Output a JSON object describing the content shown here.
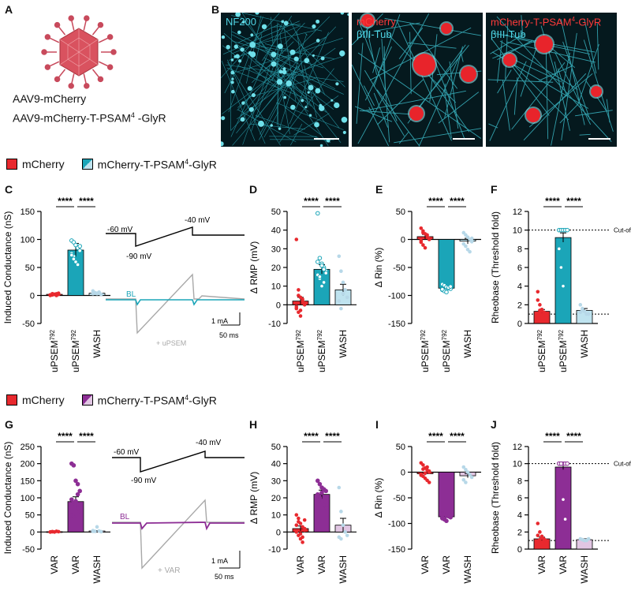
{
  "panels": {
    "A": "A",
    "B": "B",
    "C": "C",
    "D": "D",
    "E": "E",
    "F": "F",
    "G": "G",
    "H": "H",
    "I": "I",
    "J": "J"
  },
  "panelA": {
    "line1": "AAV9-mCherry",
    "line2_prefix": "AAV9-mCherry-T-PSAM",
    "line2_sup": "4",
    "line2_suffix": " -GlyR"
  },
  "panelB": {
    "img1_label": "NF200",
    "img2_label1": "mCherry",
    "img2_label2": "βIII-Tub",
    "img3_label1_prefix": "mCherry-T-PSAM",
    "img3_label1_sup": "4",
    "img3_label1_suffix": "-GlyR",
    "img3_label2": "βIII-Tub"
  },
  "legend1": {
    "a": "mCherry",
    "b_prefix": "mCherry-T-PSAM",
    "b_sup": "4",
    "b_suffix": "-GlyR"
  },
  "legend2": {
    "a": "mCherry",
    "b_prefix": "mCherry-T-PSAM",
    "b_sup": "4",
    "b_suffix": "-GlyR"
  },
  "colors": {
    "red": "#e8292e",
    "teal": "#1ba5b8",
    "lightblue": "#bfe3ef",
    "purple": "#8d2e95",
    "lightpurple": "#e1c6e3",
    "grey": "#a8a8a8"
  },
  "sig": "****",
  "cutoff": "Cut-off",
  "traces": {
    "top": {
      "v1": "-60 mV",
      "v2": "-90 mV",
      "v3": "-40 mV",
      "bl": "BL",
      "drug": "+ uPSEM",
      "scale_y": "1 mA",
      "scale_x": "50 ms"
    },
    "bottom": {
      "v1": "-60 mV",
      "v2": "-90 mV",
      "v3": "-40 mV",
      "bl": "BL",
      "drug": "+ VAR",
      "scale_y": "1 mA",
      "scale_x": "50 ms"
    }
  },
  "chart_data": [
    {
      "id": "C",
      "type": "bar",
      "ylabel": "Induced Conductance (nS)",
      "ylim": [
        -50,
        150
      ],
      "yticks": [
        -50,
        0,
        50,
        100,
        150
      ],
      "categories": [
        "uPSEM792",
        "uPSEM792",
        "WASH"
      ],
      "category_labels": [
        [
          "uPSEM",
          "792"
        ],
        [
          "uPSEM",
          "792"
        ],
        [
          "WASH",
          ""
        ]
      ],
      "colors": [
        "#e8292e",
        "#1ba5b8",
        "#bfe3ef"
      ],
      "values": [
        2,
        81,
        4
      ],
      "errors": [
        1,
        12,
        1.5
      ],
      "points": [
        [
          0,
          1,
          2,
          3,
          2,
          1,
          3,
          2,
          0,
          4,
          1,
          3
        ],
        [
          98,
          95,
          90,
          85,
          80,
          75,
          70,
          60,
          55,
          88,
          72,
          65
        ],
        [
          3,
          5,
          4,
          6,
          2,
          8,
          4,
          3,
          5,
          2
        ]
      ]
    },
    {
      "id": "D",
      "type": "bar",
      "ylabel": "Δ RMP (mV)",
      "ylim": [
        -10,
        50
      ],
      "yticks": [
        -10,
        0,
        10,
        20,
        30,
        40,
        50
      ],
      "categories": [
        "uPSEM792",
        "uPSEM792",
        "WASH"
      ],
      "category_labels": [
        [
          "uPSEM",
          "792"
        ],
        [
          "uPSEM",
          "792"
        ],
        [
          "WASH",
          ""
        ]
      ],
      "colors": [
        "#e8292e",
        "#1ba5b8",
        "#bfe3ef"
      ],
      "values": [
        2,
        19,
        8
      ],
      "errors": [
        2,
        2.5,
        3
      ],
      "points": [
        [
          35,
          8,
          4,
          2,
          0,
          -2,
          -4,
          -6,
          3,
          1,
          -1,
          5,
          -3
        ],
        [
          49,
          25,
          22,
          20,
          18,
          16,
          14,
          21,
          19,
          17,
          23,
          15,
          10,
          12
        ],
        [
          26,
          18,
          12,
          8,
          4,
          2,
          -2,
          6
        ]
      ]
    },
    {
      "id": "E",
      "type": "bar",
      "ylabel": "Δ Rin (%)",
      "ylim": [
        -150,
        50
      ],
      "yticks": [
        -150,
        -100,
        -50,
        0,
        50
      ],
      "categories": [
        "uPSEM792",
        "uPSEM792",
        "WASH"
      ],
      "category_labels": [
        [
          "uPSEM",
          "792"
        ],
        [
          "uPSEM",
          "792"
        ],
        [
          "WASH",
          ""
        ]
      ],
      "colors": [
        "#e8292e",
        "#1ba5b8",
        "#bfe3ef"
      ],
      "values": [
        5,
        -87,
        -3
      ],
      "errors": [
        4,
        2,
        5
      ],
      "points": [
        [
          20,
          15,
          10,
          5,
          0,
          -5,
          -10,
          -15,
          8,
          2,
          -2,
          12
        ],
        [
          -80,
          -82,
          -85,
          -87,
          -88,
          -90,
          -92,
          -94,
          -86,
          -84,
          -89
        ],
        [
          12,
          8,
          4,
          0,
          -4,
          -8,
          -12,
          -18,
          -22,
          2
        ]
      ]
    },
    {
      "id": "F",
      "type": "bar",
      "ylabel": "Rheobase (Threshold fold)",
      "ylim": [
        0,
        12
      ],
      "yticks": [
        0,
        2,
        4,
        6,
        8,
        10,
        12
      ],
      "categories": [
        "uPSEM792",
        "uPSEM792",
        "WASH"
      ],
      "category_labels": [
        [
          "uPSEM",
          "792"
        ],
        [
          "uPSEM",
          "792"
        ],
        [
          "WASH",
          ""
        ]
      ],
      "colors": [
        "#e8292e",
        "#1ba5b8",
        "#bfe3ef"
      ],
      "values": [
        1.3,
        9.2,
        1.4
      ],
      "errors": [
        0.2,
        0.5,
        0.2
      ],
      "dashed": [
        1,
        10
      ],
      "points": [
        [
          3.4,
          2,
          1.5,
          1.2,
          1,
          0.8,
          1.1,
          1.3,
          0.9,
          1,
          2.5,
          1.4
        ],
        [
          10,
          10,
          10,
          10,
          10,
          8,
          6,
          4
        ],
        [
          2,
          1.6,
          1.3,
          1,
          1,
          1.2,
          1.4
        ]
      ]
    },
    {
      "id": "G",
      "type": "bar",
      "ylabel": "Induced Conductance (nS)",
      "ylim": [
        -50,
        250
      ],
      "yticks": [
        -50,
        0,
        50,
        100,
        150,
        200,
        250
      ],
      "categories": [
        "VAR",
        "VAR",
        "WASH"
      ],
      "category_labels": [
        [
          "VAR",
          ""
        ],
        [
          "VAR",
          ""
        ],
        [
          "WASH",
          ""
        ]
      ],
      "colors": [
        "#e8292e",
        "#8d2e95",
        "#e1c6e3"
      ],
      "values": [
        1,
        89,
        3
      ],
      "errors": [
        0.5,
        14,
        1
      ],
      "points": [
        [
          0,
          1,
          0,
          2,
          1,
          0,
          1
        ],
        [
          200,
          195,
          150,
          140,
          120,
          95,
          85,
          80,
          70,
          60,
          50,
          45,
          90,
          110
        ],
        [
          4,
          2,
          15,
          3,
          1,
          2
        ]
      ]
    },
    {
      "id": "H",
      "type": "bar",
      "ylabel": "Δ RMP (mV)",
      "ylim": [
        -10,
        50
      ],
      "yticks": [
        -10,
        0,
        10,
        20,
        30,
        40,
        50
      ],
      "categories": [
        "VAR",
        "VAR",
        "WASH"
      ],
      "category_labels": [
        [
          "VAR",
          ""
        ],
        [
          "VAR",
          ""
        ],
        [
          "WASH",
          ""
        ]
      ],
      "colors": [
        "#e8292e",
        "#8d2e95",
        "#e1c6e3"
      ],
      "values": [
        2,
        22,
        4
      ],
      "errors": [
        1.5,
        2.5,
        4
      ],
      "points": [
        [
          10,
          8,
          5,
          3,
          1,
          0,
          -2,
          -4,
          -6,
          2,
          4,
          6,
          -1,
          -3,
          7
        ],
        [
          30,
          28,
          26,
          25,
          24,
          22,
          20,
          18,
          16,
          14,
          12,
          19,
          23
        ],
        [
          26,
          12,
          4,
          0,
          -2,
          -3,
          -4
        ]
      ]
    },
    {
      "id": "I",
      "type": "bar",
      "ylabel": "Δ Rin (%)",
      "ylim": [
        -150,
        50
      ],
      "yticks": [
        -150,
        -100,
        -50,
        0,
        50
      ],
      "categories": [
        "VAR",
        "VAR",
        "WASH"
      ],
      "category_labels": [
        [
          "VAR",
          ""
        ],
        [
          "VAR",
          ""
        ],
        [
          "WASH",
          ""
        ]
      ],
      "colors": [
        "#e8292e",
        "#8d2e95",
        "#e1c6e3"
      ],
      "values": [
        -3,
        -87,
        -7
      ],
      "errors": [
        3,
        2,
        4
      ],
      "points": [
        [
          18,
          14,
          8,
          4,
          0,
          -4,
          -8,
          -12,
          -16,
          2,
          -6,
          6,
          -2,
          10,
          -20
        ],
        [
          -80,
          -82,
          -84,
          -86,
          -88,
          -90,
          -92,
          -95,
          -85,
          -83,
          -89,
          -91
        ],
        [
          10,
          5,
          0,
          -5,
          -10,
          -15,
          -20
        ]
      ]
    },
    {
      "id": "J",
      "type": "bar",
      "ylabel": "Rheobase (Threshold fold)",
      "ylim": [
        0,
        12
      ],
      "yticks": [
        0,
        2,
        4,
        6,
        8,
        10,
        12
      ],
      "categories": [
        "VAR",
        "VAR",
        "WASH"
      ],
      "category_labels": [
        [
          "VAR",
          ""
        ],
        [
          "VAR",
          ""
        ],
        [
          "WASH",
          ""
        ]
      ],
      "colors": [
        "#e8292e",
        "#8d2e95",
        "#e1c6e3"
      ],
      "values": [
        1.2,
        9.6,
        1.1
      ],
      "errors": [
        0.2,
        0.3,
        0.1
      ],
      "dashed": [
        1,
        10
      ],
      "points": [
        [
          3,
          2,
          1.5,
          1.2,
          1,
          0.9,
          1.1,
          1.3,
          1,
          0.8,
          1.6
        ],
        [
          10,
          10,
          10,
          10,
          10,
          10,
          10,
          5.8,
          3.5
        ],
        [
          1.2,
          1.1,
          1,
          1,
          1.2
        ]
      ]
    }
  ]
}
